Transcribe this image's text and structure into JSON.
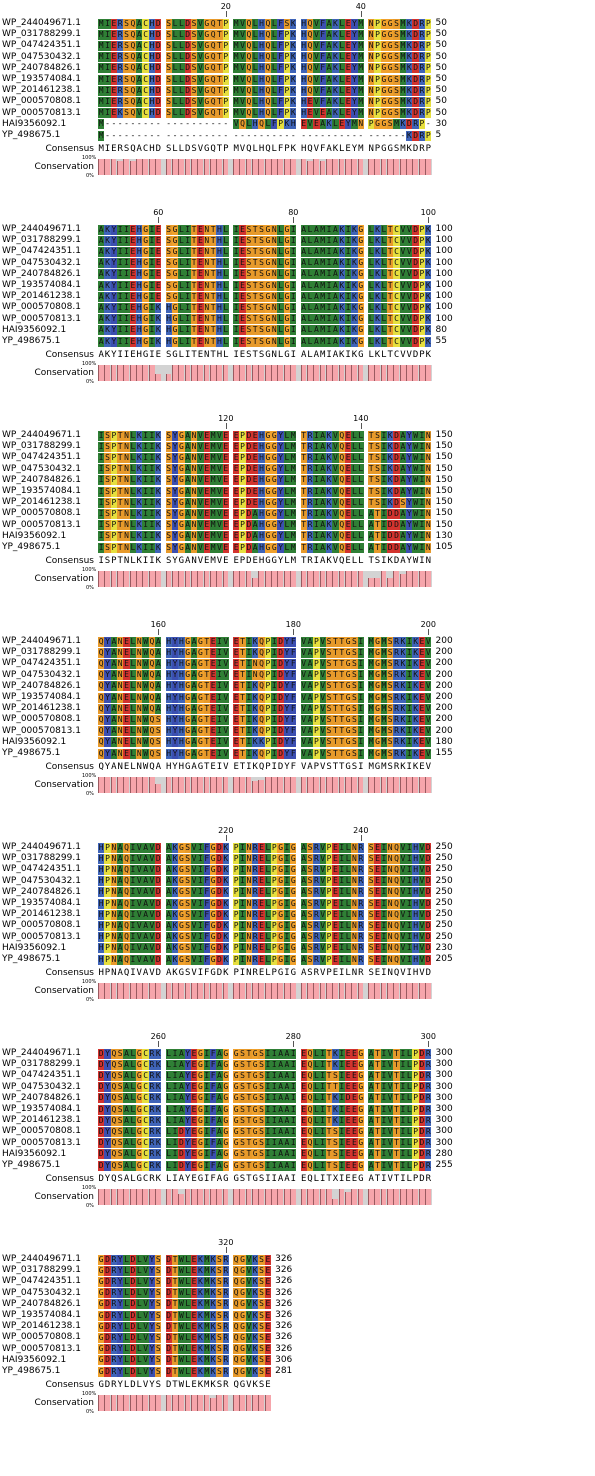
{
  "colors": {
    "A": "#2f7f35",
    "I": "#2f7f35",
    "L": "#2f7f35",
    "M": "#2f7f35",
    "V": "#2f7f35",
    "W": "#2f7f35",
    "F": "#3c4fb1",
    "Y": "#3c4fb1",
    "C": "#e6df3e",
    "P": "#e6df3e",
    "D": "#d2332e",
    "E": "#d2332e",
    "K": "#3f64b8",
    "R": "#3f64b8",
    "H": "#3f64b8",
    "N": "#e79a2b",
    "Q": "#e79a2b",
    "S": "#e79a2b",
    "T": "#e79a2b",
    "G": "#f0a12c",
    "bar_fill": "#f6a5ab",
    "bar_stroke": "#9a5a60",
    "bar_bg": "#d3d3d3",
    "gap_bg": "#ffffff"
  },
  "labels": {
    "consensus": "Consensus",
    "conservation": "Conservation",
    "pct100": "100%",
    "pct0": "0%"
  },
  "sequence_ids": [
    "WP_244049671.1",
    "WP_031788299.1",
    "WP_047424351.1",
    "WP_047530432.1",
    "WP_240784826.1",
    "WP_193574084.1",
    "WP_201461238.1",
    "WP_000570808.1",
    "WP_000570813.1",
    "HAI9356092.1",
    "YP_498675.1"
  ],
  "blocks": [
    {
      "ticks": [
        "20",
        "40"
      ],
      "rows": [
        "MIERSQACHDSLLDSVGQTPMVQLHQLFSKHQVFAKLEYMNPGGSMKDRP",
        "MIERSQACHDSLLDSVGQTPMVQLHQLFPKHQVFAKLEYMNPGGSMKDRP",
        "MIERSQACHDSLLDSVGQTPMVQLHQLFPKHQVFAKLEYMNPGGSMKDRP",
        "MIERSQACHDSLLDSVGQTPMVQLHQLFPKHQVFAKLEYMNPGGSMKDRP",
        "MIERSQACHDSLLDSVGQTPMVQLHQLFPKHQVFAKLEYMNPGGSMKDRP",
        "MIERSQACHDSLLDSVGQTPMVQLHQLFPKHQVFAKLEYMNPGGSMKDRP",
        "MIERSQACHDSLLDSVGQTPMVQLHQLFPKHQVFAKLEYMNPGGSMKDRP",
        "MIERSQACHDSLLDSVGQTPMVQLHQLFPKHEVFAKLEYMNPGGSMKDRP",
        "MIEKSQVCHDSLLDSVGQTPMVQLHQLFPKHEVEAKLEYMNPGGSMKDRP",
        "M-------------------VQLHQLFPKHEVEAKLEYMNPGGSMKDRP",
        "M---------------------------------------------KDRP"
      ],
      "ends": [
        "50",
        "50",
        "50",
        "50",
        "50",
        "50",
        "50",
        "50",
        "50",
        "30",
        "5"
      ],
      "consensus": "MIERSQACHDSLLDSVGQTPMVQLHQLFPKHQVFAKLEYMNPGGSMKDRP",
      "conservation": [
        100,
        100,
        100,
        90,
        100,
        90,
        100,
        100,
        100,
        100,
        100,
        100,
        100,
        100,
        100,
        100,
        100,
        100,
        100,
        100,
        100,
        100,
        100,
        100,
        100,
        100,
        100,
        100,
        100,
        100,
        100,
        90,
        100,
        90,
        100,
        100,
        100,
        100,
        100,
        100,
        100,
        100,
        100,
        100,
        100,
        100,
        100,
        100,
        100,
        100
      ]
    },
    {
      "ticks": [
        "60",
        "80",
        "100"
      ],
      "rows": [
        "AKYIIEHGIESGLITENTHLIESTSGNLGIALAMIAKIKGLKLTCVVDPK",
        "AKYIIEHGIESGLITENTHLIESTSGNLGIALAMIAKIKGLKLTCVVDPK",
        "AKYIIEHGIESGLITENTHLIESTSGNLGIALAMIAKIKGLKLTCVVDPK",
        "AKYIIEHGIESGLITENTHLIESTSGNLGIALAMIAKIKGLKLTCVVDPK",
        "AKYIIEHGIESGLITENTHLIESTSGNLGIALAMIAKIKGLKLTCVVDPK",
        "AKYIIEHGIESGLITENTHLIESTSGNLGIALAMIAKIKGLKLTCVVDPK",
        "AKYIIEHGIESGLITENTHLIESTSGNLGIALAMIAKIKGLKLTCVVDPK",
        "AKYIIEHGIKHGLITENTHLIESTSGNLGIALAMIAKIKGLKLTCVVDPK",
        "AKYIIEHGIKHGLITENTHLIESTSGNLGIALAMIAKIKGLKLTCVVDPK",
        "AKYIIEHGIKHGLITENTHLIESTSGNLGIALAMIAKIKGLKLTCVVDPK",
        "AKYIIEHGIKHGLITENTHLIESTSGNLGIALAMIAKIKGLKLTCVVDPK"
      ],
      "ends": [
        "100",
        "100",
        "100",
        "100",
        "100",
        "100",
        "100",
        "100",
        "100",
        "80",
        "55"
      ],
      "consensus": "AKYIIEHGIESGLITENTHLIESTSGNLGIALAMIAKIKGLKLTCVVDPK",
      "conservation": [
        100,
        100,
        100,
        100,
        100,
        100,
        100,
        100,
        100,
        45,
        45,
        100,
        100,
        100,
        100,
        100,
        100,
        100,
        100,
        100,
        100,
        100,
        100,
        100,
        100,
        100,
        100,
        100,
        100,
        100,
        100,
        100,
        100,
        100,
        100,
        100,
        100,
        100,
        100,
        100,
        100,
        100,
        100,
        100,
        100,
        100,
        100,
        100,
        100,
        100
      ]
    },
    {
      "ticks": [
        "120",
        "140"
      ],
      "rows": [
        "ISPTNLKIIKSYGANVEMVEEPDEHGGYLMTRIAKVQELLTSIKDAYWIN",
        "ISPTNLKIIKSYGANVEMVEEPDEHGGYLMTRIAKVQELLTSIKDAYWIN",
        "ISPTNLKIIKSYGANVEMVEEPDEHGGYLMTRIAKVQELLTSIKDAYWIN",
        "ISPTNLKIIKSYGANVEMVEEPDEHGGYLMTRIAKVQELLTSIKDAYWIN",
        "ISPTNLKIIKSYGANVEMVEEPDEHGGYLMTRIAKVQELLTSIKDAYWIN",
        "ISPTNLKIIKSYGANVEMVEEPDEHGGYLMTRIAKVQELLTSIKDAYWIN",
        "ISPTNLKIIKSYGANVEMVEEPDEHGGYLMTRIAKVQELLTSIKDSYWIN",
        "ISPTNLKIIKSYGANVEMVEEPDAHGGYLMTRIAKVQELLATIDDAYWIN",
        "ISPTNLKIIKSYGANVEMVEEPDAHGGYLMTRIAKVQELLATIDDAYWIN",
        "ISPTNLKIIKSYGANVEMVEEPDAHGGYLMTRIAKVQELLATIDDAYWIN",
        "ISPTNLKIIKSYGANVEMVEEPDAHGGYLMTRIAKVQELLATIDDAYWIN"
      ],
      "ends": [
        "150",
        "150",
        "150",
        "150",
        "150",
        "150",
        "150",
        "150",
        "150",
        "130",
        "105"
      ],
      "consensus": "ISPTNLKIIKSYGANVEMVEEPDEHGGYLMTRIAKVQELLTSIKDAYWIN",
      "conservation": [
        100,
        100,
        100,
        100,
        100,
        100,
        100,
        100,
        100,
        100,
        100,
        100,
        100,
        100,
        100,
        100,
        100,
        100,
        100,
        100,
        100,
        100,
        100,
        55,
        100,
        100,
        100,
        100,
        100,
        100,
        100,
        100,
        100,
        100,
        100,
        100,
        100,
        100,
        100,
        100,
        60,
        60,
        100,
        60,
        100,
        80,
        100,
        100,
        100,
        100
      ]
    },
    {
      "ticks": [
        "160",
        "180",
        "200"
      ],
      "rows": [
        "QYANELNWQAHYHGAGTEIVETIKQPIDYFVAPVSTTGSIMGMSRKIKEV",
        "QYANELNWQAHYHGAGTEIVETIKQPIDYFVAPVSTTGSIMGMSRKIKEV",
        "QYANELNWQAHYHGAGTEIVETINQPIDYFVAPVSTTGSIMGMSRKIKEV",
        "QYANELNWQAHYHGAGTEIVETINQPIDYFVAPVSTTGSIMGMSRKIKEV",
        "QYANELNWQAHYHGAGTEIVETIKQPIDYFVAPVSTTGSIMGMSRKIKEV",
        "QYANELNWQAHYHGAGTEIVETIKQPIDYFVAPVSTTGSIMGMSRKIKEV",
        "QYANELNWQAHYHGAGTEIVETIKQPIDYFVAPVSTTGSIMGMSRKIKEV",
        "QYANELNWQSHYHGAGTEIVETIKQPIDYFVAPVSTTGSIMGMSRKIKEV",
        "QYANELNWQSHYHGAGTEIVETIKQPIDYFVAPVSTTGSIMGMSRKIKEV",
        "QYANELNWQSHYHGAGTEIVETIKKPIDYFVAPVSTTGSIMGMSRKIKEV",
        "QYANELNWQSHYHGAGTEIVETIKQPIDYFVAPVSTTGSIMGMSRKIKEV"
      ],
      "ends": [
        "200",
        "200",
        "200",
        "200",
        "200",
        "200",
        "200",
        "200",
        "200",
        "180",
        "155"
      ],
      "consensus": "QYANELNWQAHYHGAGTEIVETIKQPIDYFVAPVSTTGSIMGMSRKIKEV",
      "conservation": [
        100,
        100,
        100,
        100,
        100,
        100,
        100,
        100,
        100,
        60,
        100,
        100,
        100,
        100,
        100,
        100,
        100,
        100,
        100,
        100,
        100,
        100,
        100,
        75,
        80,
        100,
        100,
        100,
        100,
        100,
        100,
        100,
        100,
        100,
        100,
        100,
        100,
        100,
        100,
        100,
        100,
        100,
        100,
        100,
        100,
        100,
        100,
        100,
        100,
        100
      ]
    },
    {
      "ticks": [
        "220",
        "240"
      ],
      "rows": [
        "HPNAQIVAVDAKGSVIFGDKPINRELPGIGASRVPEILNRSEINQVIHVD",
        "HPNAQIVAVDAKGSVIFGDKPINRELPGIGASRVPEILNRSEINQVIHVD",
        "HPNAQIVAVDAKGSVIFGDKPINRELPGIGASRVPEILNRSEINQVIHVD",
        "HPNAQIVAVDAKGSVIFGDKPINRELPGIGASRVPEILNRSEINQVIHVD",
        "HPNAQIVAVDAKGSVIFGDKPINRELPGIGASRVPEILNRSEINQVIHVD",
        "HPNAQIVAVDAKGSVIFGDKPINRELPGIGASRVPEILNRSEINQVIHVD",
        "HPNAQIVAVDAKGSVIFGDKPINRELPGIGASRVPEILNRSEINQVIHVD",
        "HPNAQIVAVDAKGSVIFGDKPINRELPGIGASRVPEILNRSEINQVIHVD",
        "HPNAQIVAVDAKGSVIFGDKPINRELPGIGASRVPEILNRSEINQVIHVD",
        "HPNAQIVAVDAKGSVIFGDKPINRELPGIGASRVPEILNRSEINQVIHVD",
        "HPNAQIVAVDAKGSVIFGDKPINRELPGIGASRVPEILNRSEINQVIHVD"
      ],
      "ends": [
        "250",
        "250",
        "250",
        "250",
        "250",
        "250",
        "250",
        "250",
        "250",
        "230",
        "205"
      ],
      "consensus": "HPNAQIVAVDAKGSVIFGDKPINRELPGIGASRVPEILNRSEINQVIHVD",
      "conservation": [
        100,
        100,
        100,
        100,
        100,
        100,
        100,
        100,
        100,
        100,
        100,
        100,
        100,
        100,
        100,
        100,
        100,
        100,
        100,
        100,
        100,
        100,
        100,
        100,
        100,
        100,
        100,
        100,
        100,
        100,
        100,
        100,
        100,
        100,
        100,
        100,
        100,
        100,
        100,
        100,
        100,
        100,
        100,
        100,
        100,
        100,
        100,
        100,
        100,
        100
      ]
    },
    {
      "ticks": [
        "260",
        "280",
        "300"
      ],
      "rows": [
        "DYQSALGCRKLIAYEGIFAGGSTGSIIAAIEQLITKIEEGATIVTILPDR",
        "DYQSALGCRKLIAYEGIFAGGSTGSIIAAIEQLITKIEEGATIVTILPDR",
        "DYQSALGCRKLIAYEGIFAGGSTGSIIAAIEQLITSIEEGATIVTILPDR",
        "DYQSALGCRKLIAYEGIFAGGSTGSIIAAIEQLITTIEEGATIVTILPDR",
        "DYQSALGCRKLIAYEGIFAGGSTGSIIAAIEQLITKIDEGATIVTILPDR",
        "DYQSALGCRKLIAYEGIFAGGSTGSIIAAIEQLITKIEEGATIVTILPDR",
        "DYQSALGCRKLIAYEGIFAGGSTGSIIAAIEQLITKIEEGATIVTILPDR",
        "DYQSALGCRKLIDYEGIFAGGSTGSIIAAIEQLITSIEEGATIVTILPDR",
        "DYQSALGCRKLIDYEGIFAGGSTGSIIAAIEQLITSIEEGATIVTILPDR",
        "DYQSALGCRKLIDYEGIFAGGSTGSIIAAIEQLITSIEEGATIVTILPDR",
        "DYQSALGCRKLIDYEGIFAGGSTGSIIAAIEQLITSIEEGATIVTILPDR"
      ],
      "ends": [
        "300",
        "300",
        "300",
        "300",
        "300",
        "300",
        "300",
        "300",
        "300",
        "280",
        "255"
      ],
      "consensus": "DYQSALGCRKLIAYEGIFAGGSTGSIIAAIEQLITXIEEGATIVTILPDR",
      "conservation": [
        100,
        100,
        100,
        100,
        100,
        100,
        100,
        100,
        100,
        100,
        100,
        100,
        70,
        100,
        100,
        100,
        100,
        100,
        100,
        100,
        100,
        100,
        100,
        100,
        100,
        100,
        100,
        100,
        100,
        100,
        100,
        100,
        100,
        100,
        100,
        40,
        100,
        85,
        100,
        100,
        100,
        100,
        100,
        100,
        100,
        100,
        100,
        100,
        100,
        100
      ]
    },
    {
      "ticks": [
        "320"
      ],
      "rows": [
        "GDRYLDLVYSDTWLEKMKSRQGVKSE",
        "GDRYLDLVYSDTWLEKMKSRQGVKSE",
        "GDRYLDLVYSDTWLEKMKSRQGVKSE",
        "GDRYLDLVYSDTWLEKMKSRQGVKSE",
        "GDRYLDLVYSDTWLEKMKSRQGVKSE",
        "GDRYLDLVYSDTWLEKMKSRQGVKSE",
        "GDRYLDLVYSDTWLEKMKSRQGVKSE",
        "GDRYLDLVYSDTWLEKMKSRQGVKSE",
        "GDRYLDLVYSDTWLEKMKSRQGVKSE",
        "GDRYLDLVYSDTWLEKMKSRQGVKSE",
        "GDRYLDLVYSDTWLEKMKSRQGVKSE"
      ],
      "ends": [
        "326",
        "326",
        "326",
        "326",
        "326",
        "326",
        "326",
        "326",
        "326",
        "306",
        "281"
      ],
      "consensus": "GDRYLDLVYSDTWLEKMKSRQGVKSE",
      "conservation": [
        100,
        100,
        100,
        100,
        100,
        100,
        100,
        100,
        100,
        100,
        100,
        100,
        100,
        100,
        100,
        100,
        100,
        85,
        100,
        100,
        100,
        100,
        100,
        100,
        100,
        100
      ]
    }
  ]
}
